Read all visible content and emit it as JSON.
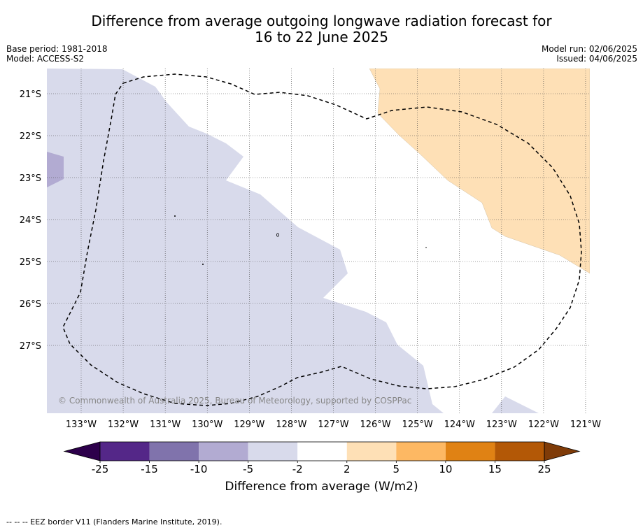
{
  "title_line1": "Difference from average outgoing longwave radiation forecast for",
  "title_line2": "16 to 22 June 2025",
  "meta_left": {
    "base_period": "Base period: 1981-2018",
    "model": "Model: ACCESS-S2"
  },
  "meta_right": {
    "model_run": "Model run: 02/06/2025",
    "issued": "Issued: 04/06/2025"
  },
  "copyright": "© Commonwealth of Australia 2025, Bureau of Meteorology, supported by COSPPac",
  "lon_labels": [
    "133°W",
    "132°W",
    "131°W",
    "130°W",
    "129°W",
    "128°W",
    "127°W",
    "126°W",
    "125°W",
    "124°W",
    "123°W",
    "122°W",
    "121°W"
  ],
  "lat_labels": [
    "21°S",
    "22°S",
    "23°S",
    "24°S",
    "25°S",
    "26°S",
    "27°S"
  ],
  "colorbar": {
    "ticks": [
      "-25",
      "-15",
      "-10",
      "-5",
      "-2",
      "2",
      "5",
      "10",
      "15",
      "25"
    ],
    "bins": [
      {
        "range": "<-25",
        "color": "#2d004b"
      },
      {
        "range": "-25 to -15",
        "color": "#542788"
      },
      {
        "range": "-15 to -10",
        "color": "#8073ac"
      },
      {
        "range": "-10 to -5",
        "color": "#b2abd2"
      },
      {
        "range": "-5 to -2",
        "color": "#d8daeb"
      },
      {
        "range": "-2 to 2",
        "color": "#ffffff"
      },
      {
        "range": "2 to 5",
        "color": "#fee0b6"
      },
      {
        "range": "5 to 10",
        "color": "#fdb863"
      },
      {
        "range": "10 to 15",
        "color": "#e08214"
      },
      {
        "range": "15 to 25",
        "color": "#b35806"
      },
      {
        "range": ">25",
        "color": "#7f3b08"
      }
    ],
    "label": "Difference from average (W/m2)"
  },
  "eez_note": "--  --  -- EEZ border V11 (Flanders Marine Institute, 2019)."
}
